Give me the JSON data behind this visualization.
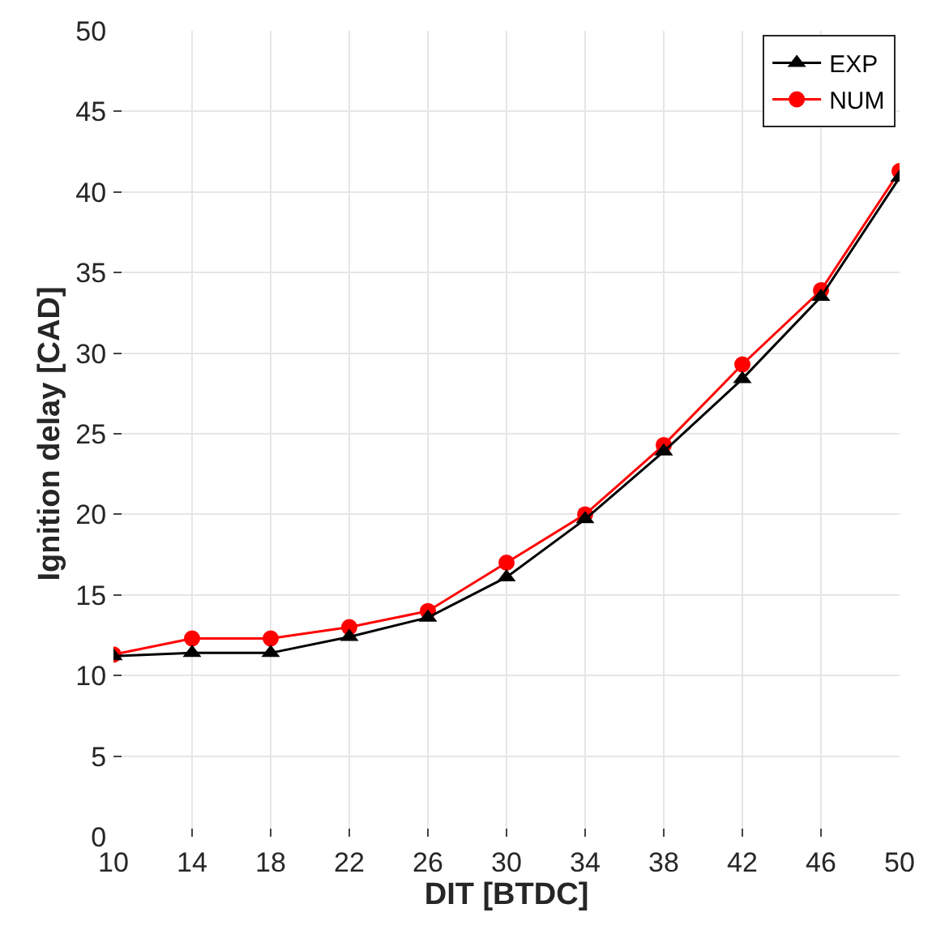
{
  "chart_data": {
    "type": "line",
    "xlabel": "DIT [BTDC]",
    "ylabel": "Ignition delay [CAD]",
    "x": [
      10,
      14,
      18,
      22,
      26,
      30,
      34,
      38,
      42,
      46,
      50
    ],
    "series": [
      {
        "name": "EXP",
        "color": "#000000",
        "marker": "triangle",
        "values": [
          11.2,
          11.4,
          11.4,
          12.4,
          13.6,
          16.1,
          19.7,
          23.9,
          28.4,
          33.5,
          40.9
        ]
      },
      {
        "name": "NUM",
        "color": "#ff0000",
        "marker": "circle",
        "values": [
          11.3,
          12.3,
          12.3,
          13.0,
          14.0,
          17.0,
          20.0,
          24.3,
          29.3,
          33.9,
          41.3
        ]
      }
    ],
    "xlim": [
      10,
      50
    ],
    "xticks": [
      10,
      14,
      18,
      22,
      26,
      30,
      34,
      38,
      42,
      46,
      50
    ],
    "ylim": [
      0,
      50
    ],
    "yticks": [
      0,
      5,
      10,
      15,
      20,
      25,
      30,
      35,
      40,
      45,
      50
    ],
    "grid": true,
    "legend": "top right",
    "line_style": "solid"
  }
}
